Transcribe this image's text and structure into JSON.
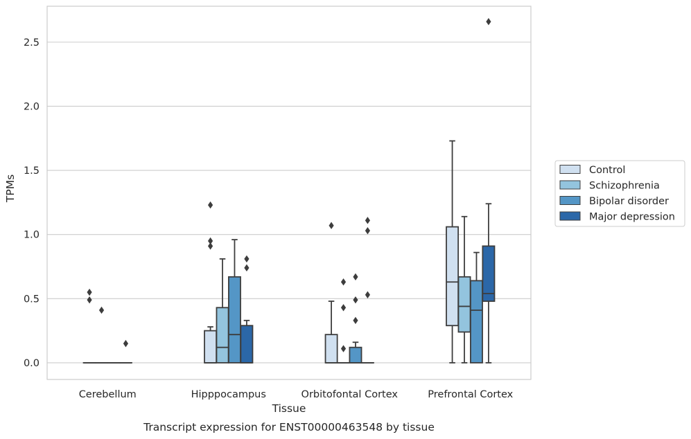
{
  "chart_data": {
    "type": "box",
    "caption": "Transcript expression for ENST00000463548 by tissue",
    "xlabel": "Tissue",
    "ylabel": "TPMs",
    "ylim": [
      -0.13,
      2.78
    ],
    "yticks": [
      "0.0",
      "0.5",
      "1.0",
      "1.5",
      "2.0",
      "2.5"
    ],
    "grid": "horizontal",
    "legend_position": "right",
    "categories": [
      "Cerebellum",
      "Hipppocampus",
      "Orbitofontal Cortex",
      "Prefrontal Cortex"
    ],
    "series": [
      {
        "name": "Control",
        "color": "#d0e0f0",
        "boxes": [
          {
            "whisker_low": 0,
            "q1": 0,
            "median": 0,
            "q3": 0,
            "whisker_high": 0,
            "outliers": [
              0.55,
              0.49
            ]
          },
          {
            "whisker_low": 0,
            "q1": 0,
            "median": 0,
            "q3": 0.25,
            "whisker_high": 0.28,
            "outliers": [
              1.23,
              0.95,
              0.91
            ]
          },
          {
            "whisker_low": 0,
            "q1": 0,
            "median": 0,
            "q3": 0.22,
            "whisker_high": 0.48,
            "outliers": [
              1.07
            ]
          },
          {
            "whisker_low": 0,
            "q1": 0.29,
            "median": 0.63,
            "q3": 1.06,
            "whisker_high": 1.73,
            "outliers": []
          }
        ]
      },
      {
        "name": "Schizophrenia",
        "color": "#93c4de",
        "boxes": [
          {
            "whisker_low": 0,
            "q1": 0,
            "median": 0,
            "q3": 0,
            "whisker_high": 0,
            "outliers": [
              0.41
            ]
          },
          {
            "whisker_low": 0,
            "q1": 0,
            "median": 0.12,
            "q3": 0.43,
            "whisker_high": 0.81,
            "outliers": []
          },
          {
            "whisker_low": 0,
            "q1": 0,
            "median": 0,
            "q3": 0,
            "whisker_high": 0,
            "outliers": [
              0.63,
              0.43,
              0.11
            ]
          },
          {
            "whisker_low": 0,
            "q1": 0.24,
            "median": 0.44,
            "q3": 0.67,
            "whisker_high": 1.14,
            "outliers": []
          }
        ]
      },
      {
        "name": "Bipolar disorder",
        "color": "#5496c6",
        "boxes": [
          {
            "whisker_low": 0,
            "q1": 0,
            "median": 0,
            "q3": 0,
            "whisker_high": 0,
            "outliers": []
          },
          {
            "whisker_low": 0,
            "q1": 0,
            "median": 0.22,
            "q3": 0.67,
            "whisker_high": 0.96,
            "outliers": []
          },
          {
            "whisker_low": 0,
            "q1": 0,
            "median": 0,
            "q3": 0.12,
            "whisker_high": 0.16,
            "outliers": [
              0.67,
              0.49,
              0.33
            ]
          },
          {
            "whisker_low": 0,
            "q1": 0,
            "median": 0.41,
            "q3": 0.64,
            "whisker_high": 0.86,
            "outliers": []
          }
        ]
      },
      {
        "name": "Major depression",
        "color": "#2b67a8",
        "boxes": [
          {
            "whisker_low": 0,
            "q1": 0,
            "median": 0,
            "q3": 0,
            "whisker_high": 0,
            "outliers": [
              0.15
            ]
          },
          {
            "whisker_low": 0,
            "q1": 0,
            "median": 0,
            "q3": 0.29,
            "whisker_high": 0.33,
            "outliers": [
              0.81,
              0.74
            ]
          },
          {
            "whisker_low": 0,
            "q1": 0,
            "median": 0,
            "q3": 0,
            "whisker_high": 0,
            "outliers": [
              1.11,
              1.03,
              0.53
            ]
          },
          {
            "whisker_low": 0,
            "q1": 0.48,
            "median": 0.54,
            "q3": 0.91,
            "whisker_high": 1.24,
            "outliers": [
              2.66
            ]
          }
        ]
      }
    ]
  }
}
